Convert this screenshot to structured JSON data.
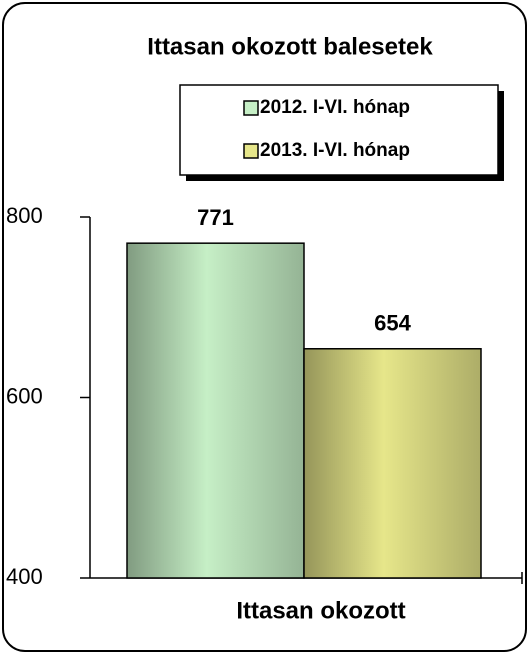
{
  "chart_data": {
    "type": "bar",
    "title": "Ittasan okozott balesetek",
    "categories": [
      "Ittasan okozott"
    ],
    "series": [
      {
        "name": "2012. I-VI. hónap",
        "color": "#c6efc6",
        "values": [
          771
        ]
      },
      {
        "name": "2013. I-VI. hónap",
        "color": "#e6e68a",
        "values": [
          654
        ]
      }
    ],
    "ylim": [
      400,
      800
    ],
    "yticks": [
      400,
      600,
      800
    ],
    "grid": false
  }
}
